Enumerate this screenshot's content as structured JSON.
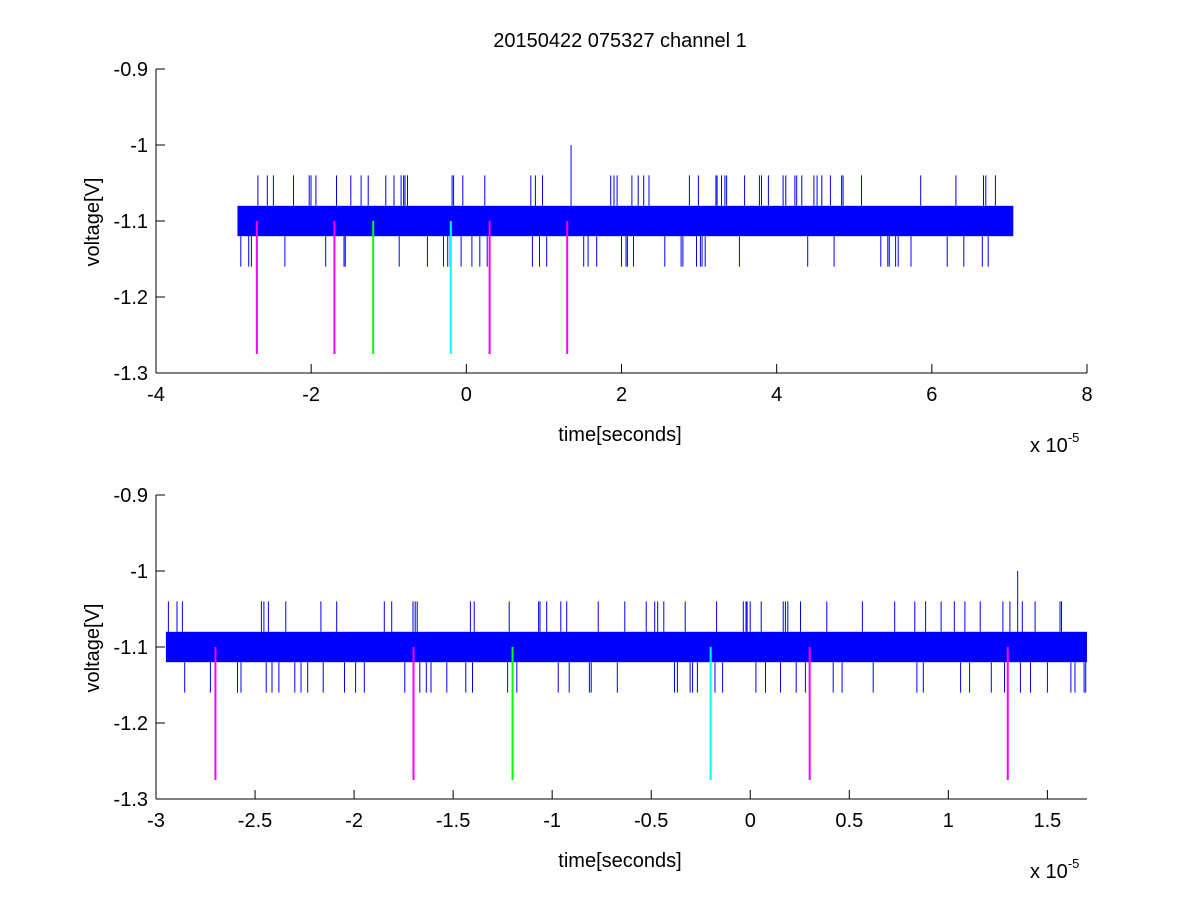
{
  "figure": {
    "title": "20150422 075327 channel 1"
  },
  "colors": {
    "trace": "#0000ff",
    "marker_magenta": "#ff00ff",
    "marker_green": "#00ff00",
    "marker_cyan": "#00ffff",
    "axes": "#000000",
    "background": "#ffffff"
  },
  "chart_data": [
    {
      "type": "line",
      "title": "20150422 075327 channel 1",
      "xlabel": "time[seconds]",
      "ylabel": "voltage[V]",
      "x_multiplier": "x 10",
      "x_multiplier_exponent": "-5",
      "xlim": [
        -4,
        8
      ],
      "ylim": [
        -1.3,
        -0.9
      ],
      "y_reversed": true,
      "grid": false,
      "xticks": [
        -4,
        -2,
        0,
        2,
        4,
        6,
        8
      ],
      "xtick_labels": [
        "-4",
        "-2",
        "0",
        "2",
        "4",
        "6",
        "8"
      ],
      "yticks": [
        -1.3,
        -1.2,
        -1.1,
        -1,
        -0.9
      ],
      "ytick_labels": [
        "-1.3",
        "-1.2",
        "-1.1",
        "-1",
        "-0.9"
      ],
      "series": [
        {
          "color": "#0000ff",
          "x_range": [
            -2.95,
            7.05
          ],
          "band": [
            -1.12,
            -1.08
          ],
          "spike_high": -1.04,
          "spike_low": -1.16,
          "peak": {
            "x": 1.35,
            "y": -1.0
          }
        }
      ],
      "markers": [
        {
          "x": -2.7,
          "y_top": -1.1,
          "y_bottom": -1.275,
          "color": "#ff00ff"
        },
        {
          "x": -1.7,
          "y_top": -1.1,
          "y_bottom": -1.275,
          "color": "#ff00ff"
        },
        {
          "x": -1.2,
          "y_top": -1.1,
          "y_bottom": -1.275,
          "color": "#00ff00"
        },
        {
          "x": -0.2,
          "y_top": -1.1,
          "y_bottom": -1.275,
          "color": "#00ffff"
        },
        {
          "x": 0.3,
          "y_top": -1.1,
          "y_bottom": -1.275,
          "color": "#ff00ff"
        },
        {
          "x": 1.3,
          "y_top": -1.1,
          "y_bottom": -1.275,
          "color": "#ff00ff"
        }
      ]
    },
    {
      "type": "line",
      "title": "",
      "xlabel": "time[seconds]",
      "ylabel": "voltage[V]",
      "x_multiplier": "x 10",
      "x_multiplier_exponent": "-5",
      "xlim": [
        -3,
        1.7
      ],
      "ylim": [
        -1.3,
        -0.9
      ],
      "y_reversed": true,
      "grid": false,
      "xticks": [
        -3,
        -2.5,
        -2,
        -1.5,
        -1,
        -0.5,
        0,
        0.5,
        1,
        1.5
      ],
      "xtick_labels": [
        "-3",
        "-2.5",
        "-2",
        "-1.5",
        "-1",
        "-0.5",
        "0",
        "0.5",
        "1",
        "1.5"
      ],
      "yticks": [
        -1.3,
        -1.2,
        -1.1,
        -1,
        -0.9
      ],
      "ytick_labels": [
        "-1.3",
        "-1.2",
        "-1.1",
        "-1",
        "-0.9"
      ],
      "series": [
        {
          "color": "#0000ff",
          "x_range": [
            -2.95,
            1.7
          ],
          "band": [
            -1.12,
            -1.08
          ],
          "spike_high": -1.04,
          "spike_low": -1.16,
          "peak": {
            "x": 1.35,
            "y": -1.0
          }
        }
      ],
      "markers": [
        {
          "x": -2.7,
          "y_top": -1.1,
          "y_bottom": -1.275,
          "color": "#ff00ff"
        },
        {
          "x": -1.7,
          "y_top": -1.1,
          "y_bottom": -1.275,
          "color": "#ff00ff"
        },
        {
          "x": -1.2,
          "y_top": -1.1,
          "y_bottom": -1.275,
          "color": "#00ff00"
        },
        {
          "x": -0.2,
          "y_top": -1.1,
          "y_bottom": -1.275,
          "color": "#00ffff"
        },
        {
          "x": 0.3,
          "y_top": -1.1,
          "y_bottom": -1.275,
          "color": "#ff00ff"
        },
        {
          "x": 1.3,
          "y_top": -1.1,
          "y_bottom": -1.275,
          "color": "#ff00ff"
        }
      ]
    }
  ]
}
